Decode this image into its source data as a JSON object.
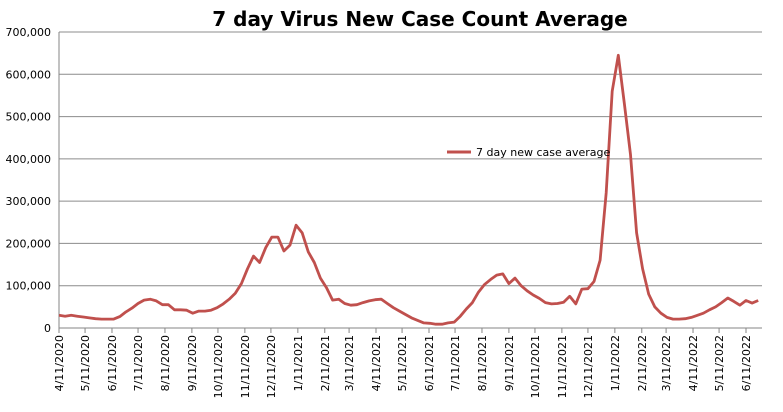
{
  "chart_data": {
    "type": "line",
    "title": "7 day Virus New Case Count Average",
    "xlabel": "",
    "ylabel": "",
    "ylim": [
      0,
      700000
    ],
    "yticks": [
      "0",
      "100,000",
      "200,000",
      "300,000",
      "400,000",
      "500,000",
      "600,000",
      "700,000"
    ],
    "xticks": [
      "4/11/2020",
      "5/11/2020",
      "6/11/2020",
      "7/11/2020",
      "8/11/2020",
      "9/11/2020",
      "10/11/2020",
      "11/11/2020",
      "12/11/2020",
      "1/11/2021",
      "2/11/2021",
      "3/11/2021",
      "4/11/2021",
      "5/11/2021",
      "6/11/2021",
      "7/11/2021",
      "8/11/2021",
      "9/11/2021",
      "10/11/2021",
      "11/11/2021",
      "12/11/2021",
      "1/11/2022",
      "2/11/2022",
      "3/11/2022",
      "4/11/2022",
      "5/11/2022",
      "6/11/2022"
    ],
    "grid": true,
    "legend_position": "center-right",
    "series": [
      {
        "name": "7 day new case average",
        "color": "#c0504d",
        "points": [
          [
            "2020-04-11",
            30000
          ],
          [
            "2020-04-18",
            28000
          ],
          [
            "2020-04-25",
            30000
          ],
          [
            "2020-05-02",
            28000
          ],
          [
            "2020-05-09",
            26000
          ],
          [
            "2020-05-16",
            24000
          ],
          [
            "2020-05-23",
            22000
          ],
          [
            "2020-05-30",
            21000
          ],
          [
            "2020-06-06",
            21000
          ],
          [
            "2020-06-13",
            21000
          ],
          [
            "2020-06-20",
            27000
          ],
          [
            "2020-06-27",
            38000
          ],
          [
            "2020-07-04",
            47000
          ],
          [
            "2020-07-11",
            58000
          ],
          [
            "2020-07-18",
            66000
          ],
          [
            "2020-07-25",
            68000
          ],
          [
            "2020-08-01",
            64000
          ],
          [
            "2020-08-08",
            55000
          ],
          [
            "2020-08-15",
            55000
          ],
          [
            "2020-08-22",
            43000
          ],
          [
            "2020-08-29",
            43000
          ],
          [
            "2020-09-05",
            42000
          ],
          [
            "2020-09-12",
            35000
          ],
          [
            "2020-09-19",
            40000
          ],
          [
            "2020-09-26",
            40000
          ],
          [
            "2020-10-03",
            42000
          ],
          [
            "2020-10-10",
            48000
          ],
          [
            "2020-10-17",
            57000
          ],
          [
            "2020-10-24",
            68000
          ],
          [
            "2020-10-31",
            82000
          ],
          [
            "2020-11-07",
            105000
          ],
          [
            "2020-11-14",
            140000
          ],
          [
            "2020-11-21",
            170000
          ],
          [
            "2020-11-28",
            155000
          ],
          [
            "2020-12-05",
            190000
          ],
          [
            "2020-12-12",
            215000
          ],
          [
            "2020-12-19",
            215000
          ],
          [
            "2020-12-26",
            182000
          ],
          [
            "2021-01-02",
            196000
          ],
          [
            "2021-01-09",
            243000
          ],
          [
            "2021-01-16",
            225000
          ],
          [
            "2021-01-23",
            180000
          ],
          [
            "2021-01-30",
            155000
          ],
          [
            "2021-02-06",
            118000
          ],
          [
            "2021-02-13",
            95000
          ],
          [
            "2021-02-20",
            66000
          ],
          [
            "2021-02-27",
            68000
          ],
          [
            "2021-03-06",
            58000
          ],
          [
            "2021-03-13",
            54000
          ],
          [
            "2021-03-20",
            55000
          ],
          [
            "2021-03-27",
            60000
          ],
          [
            "2021-04-03",
            64000
          ],
          [
            "2021-04-10",
            67000
          ],
          [
            "2021-04-17",
            68000
          ],
          [
            "2021-04-24",
            58000
          ],
          [
            "2021-05-01",
            48000
          ],
          [
            "2021-05-08",
            40000
          ],
          [
            "2021-05-15",
            32000
          ],
          [
            "2021-05-22",
            24000
          ],
          [
            "2021-05-29",
            18000
          ],
          [
            "2021-06-05",
            12000
          ],
          [
            "2021-06-12",
            11000
          ],
          [
            "2021-06-19",
            9000
          ],
          [
            "2021-06-26",
            9000
          ],
          [
            "2021-07-03",
            12000
          ],
          [
            "2021-07-10",
            14000
          ],
          [
            "2021-07-17",
            28000
          ],
          [
            "2021-07-24",
            45000
          ],
          [
            "2021-07-31",
            60000
          ],
          [
            "2021-08-07",
            85000
          ],
          [
            "2021-08-14",
            103000
          ],
          [
            "2021-08-21",
            115000
          ],
          [
            "2021-08-28",
            125000
          ],
          [
            "2021-09-04",
            128000
          ],
          [
            "2021-09-11",
            105000
          ],
          [
            "2021-09-18",
            118000
          ],
          [
            "2021-09-25",
            100000
          ],
          [
            "2021-10-02",
            88000
          ],
          [
            "2021-10-09",
            78000
          ],
          [
            "2021-10-16",
            70000
          ],
          [
            "2021-10-23",
            60000
          ],
          [
            "2021-10-30",
            57000
          ],
          [
            "2021-11-06",
            58000
          ],
          [
            "2021-11-13",
            61000
          ],
          [
            "2021-11-20",
            75000
          ],
          [
            "2021-11-27",
            57000
          ],
          [
            "2021-12-04",
            92000
          ],
          [
            "2021-12-11",
            93000
          ],
          [
            "2021-12-18",
            110000
          ],
          [
            "2021-12-25",
            160000
          ],
          [
            "2022-01-01",
            320000
          ],
          [
            "2022-01-08",
            560000
          ],
          [
            "2022-01-15",
            645000
          ],
          [
            "2022-01-22",
            530000
          ],
          [
            "2022-01-29",
            410000
          ],
          [
            "2022-02-05",
            225000
          ],
          [
            "2022-02-12",
            140000
          ],
          [
            "2022-02-19",
            80000
          ],
          [
            "2022-02-26",
            50000
          ],
          [
            "2022-03-05",
            35000
          ],
          [
            "2022-03-12",
            25000
          ],
          [
            "2022-03-19",
            21000
          ],
          [
            "2022-03-26",
            21000
          ],
          [
            "2022-04-02",
            22000
          ],
          [
            "2022-04-09",
            25000
          ],
          [
            "2022-04-16",
            30000
          ],
          [
            "2022-04-23",
            35000
          ],
          [
            "2022-04-30",
            43000
          ],
          [
            "2022-05-07",
            50000
          ],
          [
            "2022-05-14",
            60000
          ],
          [
            "2022-05-21",
            71000
          ],
          [
            "2022-05-28",
            63000
          ],
          [
            "2022-06-04",
            54000
          ],
          [
            "2022-06-11",
            65000
          ],
          [
            "2022-06-18",
            59000
          ],
          [
            "2022-06-25",
            65000
          ]
        ]
      }
    ]
  }
}
